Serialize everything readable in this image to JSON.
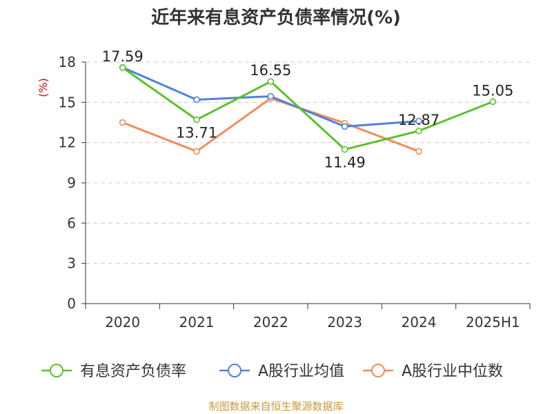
{
  "chart_data": {
    "type": "line",
    "title": "近年来有息资产负债率情况(%)",
    "ylabel": "(%)",
    "categories": [
      "2020",
      "2021",
      "2022",
      "2023",
      "2024",
      "2025H1"
    ],
    "yticks": [
      "0",
      "3",
      "6",
      "9",
      "12",
      "15",
      "18"
    ],
    "ylim": [
      0,
      18
    ],
    "grid": true,
    "legend_position": "bottom",
    "series": [
      {
        "name": "有息资产负债率",
        "color": "#5cc02a",
        "values": [
          17.59,
          13.71,
          16.55,
          11.49,
          12.87,
          15.05
        ],
        "labels": [
          "17.59",
          "13.71",
          "16.55",
          "11.49",
          "12.87",
          "15.05"
        ]
      },
      {
        "name": "A股行业均值",
        "color": "#4f81dc",
        "values": [
          17.6,
          15.2,
          15.45,
          13.2,
          13.6,
          null
        ]
      },
      {
        "name": "A股行业中位数",
        "color": "#f28b5a",
        "values": [
          13.5,
          11.35,
          15.3,
          13.45,
          11.35,
          null
        ]
      }
    ],
    "source": "制图数据来自恒生聚源数据库"
  }
}
